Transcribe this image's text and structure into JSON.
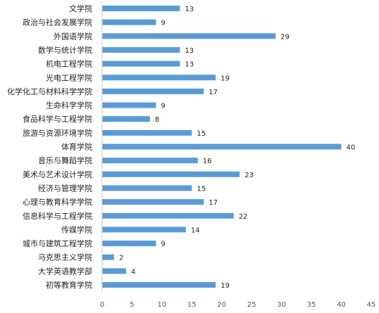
{
  "chart_data": {
    "type": "bar",
    "orientation": "horizontal",
    "title": "",
    "xlabel": "",
    "ylabel": "",
    "xlim": [
      0,
      45
    ],
    "x_ticks": [
      0,
      5,
      10,
      15,
      20,
      25,
      30,
      35,
      40,
      45
    ],
    "grid": false,
    "legend": "none",
    "bar_color": "#5B9BD5",
    "data_labels": true,
    "categories": [
      "文学院",
      "政治与社会发展学院",
      "外国语学院",
      "数学与统计学院",
      "机电工程学院",
      "光电工程学院",
      "化学化工与材料科学学院",
      "生命科学学院",
      "食品科学与工程学院",
      "旅游与资源环境学院",
      "体育学院",
      "音乐与舞蹈学院",
      "美术与艺术设计学院",
      "经济与管理学院",
      "心理与教育科学学院",
      "信息科学与工程学院",
      "传媒学院",
      "城市与建筑工程学院",
      "马克思主义学院",
      "大学英语教学部",
      "初等教育学院"
    ],
    "values": [
      13,
      9,
      29,
      13,
      13,
      19,
      17,
      9,
      8,
      15,
      40,
      16,
      23,
      15,
      17,
      22,
      14,
      9,
      2,
      4,
      19
    ]
  }
}
